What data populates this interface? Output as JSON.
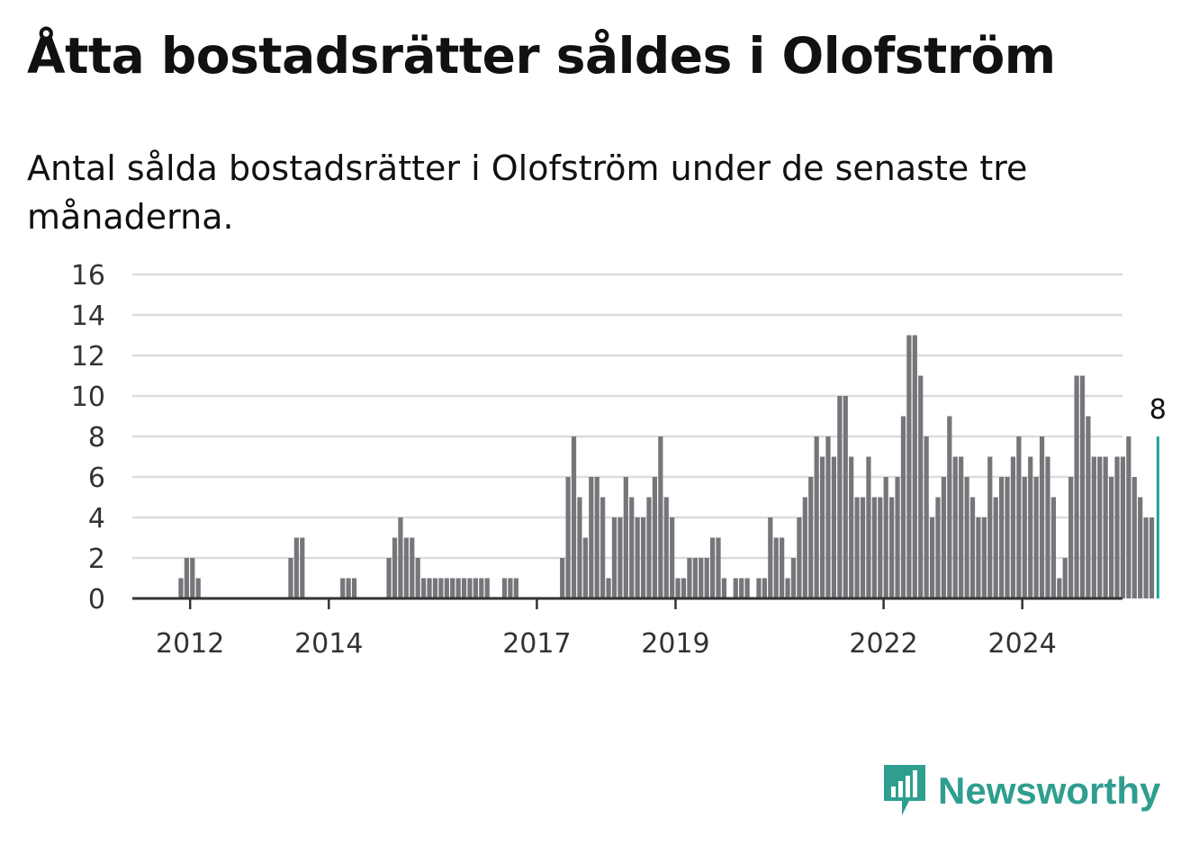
{
  "title": "Åtta bostadsrätter såldes i Olofström",
  "subtitle": "Antal sålda bostadsrätter i Olofström under de senaste tre månaderna.",
  "brand": {
    "name": "Newsworthy",
    "color": "#2f9e8f"
  },
  "chart_data": {
    "type": "bar",
    "x_start": "2011-01",
    "values": [
      0,
      0,
      0,
      0,
      0,
      0,
      0,
      0,
      0,
      0,
      0,
      0,
      0,
      0,
      0,
      0,
      0,
      0,
      0,
      0,
      0,
      0,
      0,
      0,
      0,
      0,
      0,
      0,
      0,
      0,
      0,
      0,
      0,
      0,
      0,
      0,
      0,
      0,
      0,
      0,
      0,
      0,
      0,
      0,
      0,
      0,
      0,
      0,
      0,
      0,
      0,
      0,
      0,
      0,
      0,
      0,
      0,
      0,
      0,
      0,
      0,
      0,
      0,
      0,
      0,
      0,
      0,
      0,
      0,
      0,
      0,
      0,
      0,
      0,
      0,
      0,
      0,
      0,
      0,
      0,
      0,
      0,
      0,
      0,
      0,
      0,
      0,
      0,
      0,
      0,
      0,
      0,
      0,
      0,
      0,
      0,
      0,
      0,
      0,
      0,
      0,
      0,
      0,
      0,
      0,
      0,
      0,
      0,
      0,
      0,
      0,
      0,
      0,
      0,
      0,
      0,
      0,
      0,
      0,
      0,
      0,
      0,
      0,
      0,
      0,
      0,
      0,
      0,
      0,
      0,
      0,
      0,
      0,
      0,
      0,
      0,
      0,
      0,
      0,
      0,
      0,
      0,
      0,
      0,
      0,
      0,
      0,
      0,
      0,
      0,
      0,
      0,
      0,
      0,
      0,
      0,
      0,
      0,
      0,
      0,
      0,
      0,
      0,
      0,
      0,
      0,
      0
    ],
    "series_values": [
      1,
      2,
      2,
      1,
      0,
      0,
      0,
      0,
      0,
      0,
      0,
      0,
      0,
      0,
      0,
      0,
      0,
      0,
      0,
      2,
      3,
      3,
      0,
      0,
      0,
      0,
      0,
      0,
      1,
      1,
      1,
      0,
      0,
      0,
      0,
      0,
      2,
      3,
      4,
      3,
      3,
      2,
      1,
      1,
      1,
      1,
      1,
      1,
      1,
      1,
      1,
      1,
      1,
      1,
      0,
      0,
      1,
      1,
      1,
      0,
      0,
      0,
      0,
      0,
      0,
      0,
      2,
      6,
      8,
      5,
      3,
      6,
      6,
      5,
      1,
      4,
      4,
      6,
      5,
      4,
      4,
      5,
      6,
      8,
      5,
      4,
      1,
      1,
      2,
      2,
      2,
      2,
      3,
      3,
      1,
      0,
      1,
      1,
      1,
      0,
      1,
      1,
      4,
      3,
      3,
      1,
      2,
      4,
      5,
      6,
      8,
      7,
      8,
      7,
      10,
      10,
      7,
      5,
      5,
      7,
      5,
      5,
      6,
      5,
      6,
      9,
      13,
      13,
      11,
      8,
      4,
      5,
      6,
      9,
      7,
      7,
      6,
      5,
      4,
      4,
      7,
      5,
      6,
      6,
      7,
      8,
      6,
      7,
      6,
      8,
      7,
      5,
      1,
      2,
      6,
      11,
      11,
      9,
      7,
      7,
      7,
      6,
      7,
      7,
      8,
      6,
      5,
      4,
      4,
      8
    ],
    "series_start": "2011-11",
    "x_ticks": [
      "2012",
      "2014",
      "2017",
      "2019",
      "2022",
      "2024"
    ],
    "x_tick_positions": [
      "2012-01",
      "2014-01",
      "2017-01",
      "2019-01",
      "2022-01",
      "2024-01"
    ],
    "y_ticks": [
      0,
      2,
      4,
      6,
      8,
      10,
      12,
      14,
      16
    ],
    "ylim": [
      0,
      16
    ],
    "last_label": "8",
    "bar_color": "#76757a",
    "highlight_color": "#16a596",
    "grid": true
  }
}
